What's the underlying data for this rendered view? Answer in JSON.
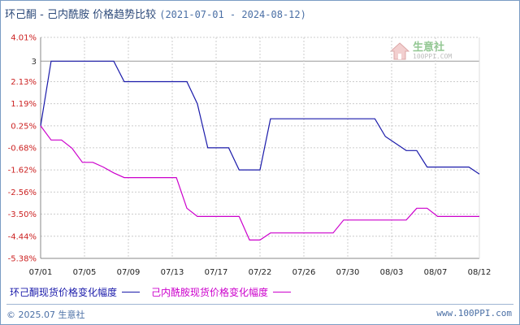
{
  "title": {
    "main": "环己酮 - 己内酰胺 价格趋势比较",
    "range": "(2021-07-01 - 2024-08-12)"
  },
  "watermark": {
    "text": "生意社",
    "sub": "100PPI.COM"
  },
  "legend": {
    "series1_label": "环己酮现货价格变化幅度",
    "series2_label": "己内酰胺现货价格变化幅度"
  },
  "footer": {
    "copyright": "© 2025.07 生意社",
    "url": "www.100PPI.com"
  },
  "colors": {
    "series1": "#1a1aaa",
    "series2": "#cc00cc",
    "axis": "#888888",
    "grid": "#cccccc",
    "tick_label": "#cc2222"
  },
  "chart_data": {
    "type": "line",
    "title": "环己酮 - 己内酰胺 价格趋势比较",
    "subtitle": "(2021-07-01 - 2024-08-12)",
    "xlabel": "",
    "ylabel": "",
    "ylim": [
      -5.38,
      4.01
    ],
    "grid": true,
    "legend_position": "bottom",
    "y_ticks": [
      "4.01%",
      "3",
      "2.13%",
      "1.19%",
      "0.25%",
      "-0.68%",
      "-1.62%",
      "-2.56%",
      "-3.50%",
      "-4.44%",
      "-5.38%"
    ],
    "y_tick_values": [
      4.01,
      3.0,
      2.13,
      1.19,
      0.25,
      -0.68,
      -1.62,
      -2.56,
      -3.5,
      -4.44,
      -5.38
    ],
    "x_ticks": [
      "07/01",
      "07/05",
      "07/09",
      "07/13",
      "07/17",
      "07/22",
      "07/26",
      "07/30",
      "08/03",
      "08/07",
      "08/12"
    ],
    "x_range": [
      0,
      42
    ],
    "series": [
      {
        "name": "环己酮现货价格变化幅度",
        "color": "#1a1aaa",
        "x": [
          0,
          1,
          7,
          8,
          14,
          15,
          16,
          18,
          19,
          21,
          22,
          23,
          32,
          33,
          35,
          36,
          37,
          41,
          42
        ],
        "y": [
          0.25,
          3.0,
          3.0,
          2.13,
          2.13,
          1.19,
          -0.68,
          -0.68,
          -1.62,
          -1.62,
          0.55,
          0.55,
          0.55,
          -0.2,
          -0.8,
          -0.8,
          -1.5,
          -1.5,
          -1.8
        ]
      },
      {
        "name": "己内酰胺现货价格变化幅度",
        "color": "#cc00cc",
        "x": [
          0,
          1,
          2,
          3,
          4,
          5,
          6,
          7,
          8,
          13,
          14,
          15,
          19,
          20,
          21,
          22,
          28,
          29,
          35,
          36,
          37,
          38,
          42
        ],
        "y": [
          0.25,
          -0.35,
          -0.35,
          -0.7,
          -1.3,
          -1.3,
          -1.5,
          -1.75,
          -1.95,
          -1.95,
          -3.25,
          -3.6,
          -3.6,
          -4.6,
          -4.6,
          -4.3,
          -4.3,
          -3.75,
          -3.75,
          -3.25,
          -3.25,
          -3.6,
          -3.6
        ]
      }
    ]
  }
}
